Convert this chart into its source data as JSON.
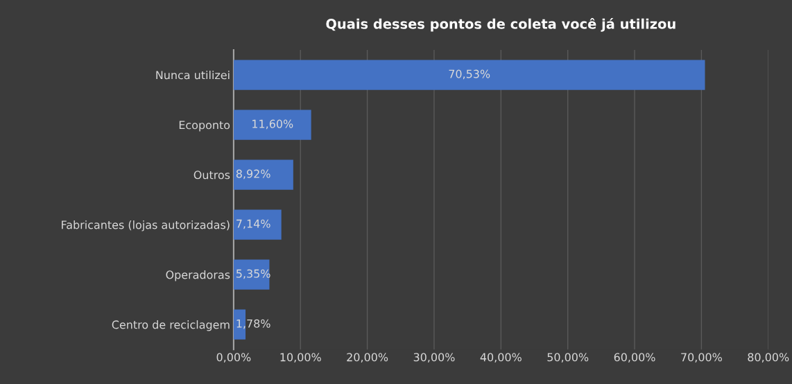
{
  "chart_data": {
    "type": "bar",
    "orientation": "horizontal",
    "title": "Quais desses pontos de coleta você já utilizou",
    "categories": [
      "Nunca utilizei",
      "Ecoponto",
      "Outros",
      "Fabricantes (lojas autorizadas)",
      "Operadoras",
      "Centro de reciclagem"
    ],
    "values": [
      70.53,
      11.6,
      8.92,
      7.14,
      5.35,
      1.78
    ],
    "value_labels": [
      "70,53%",
      "11,60%",
      "8,92%",
      "7,14%",
      "5,35%",
      "1,78%"
    ],
    "color": "#4472c4",
    "xlim": [
      0,
      80
    ],
    "xticks": [
      {
        "value": 0,
        "label": "0,00%"
      },
      {
        "value": 10,
        "label": "10,00%"
      },
      {
        "value": 20,
        "label": "20,00%"
      },
      {
        "value": 30,
        "label": "30,00%"
      },
      {
        "value": 40,
        "label": "40,00%"
      },
      {
        "value": 50,
        "label": "50,00%"
      },
      {
        "value": 60,
        "label": "60,00%"
      },
      {
        "value": 70,
        "label": "70,00%"
      },
      {
        "value": 80,
        "label": "80,00%"
      }
    ],
    "grid": "x",
    "legend": false
  }
}
